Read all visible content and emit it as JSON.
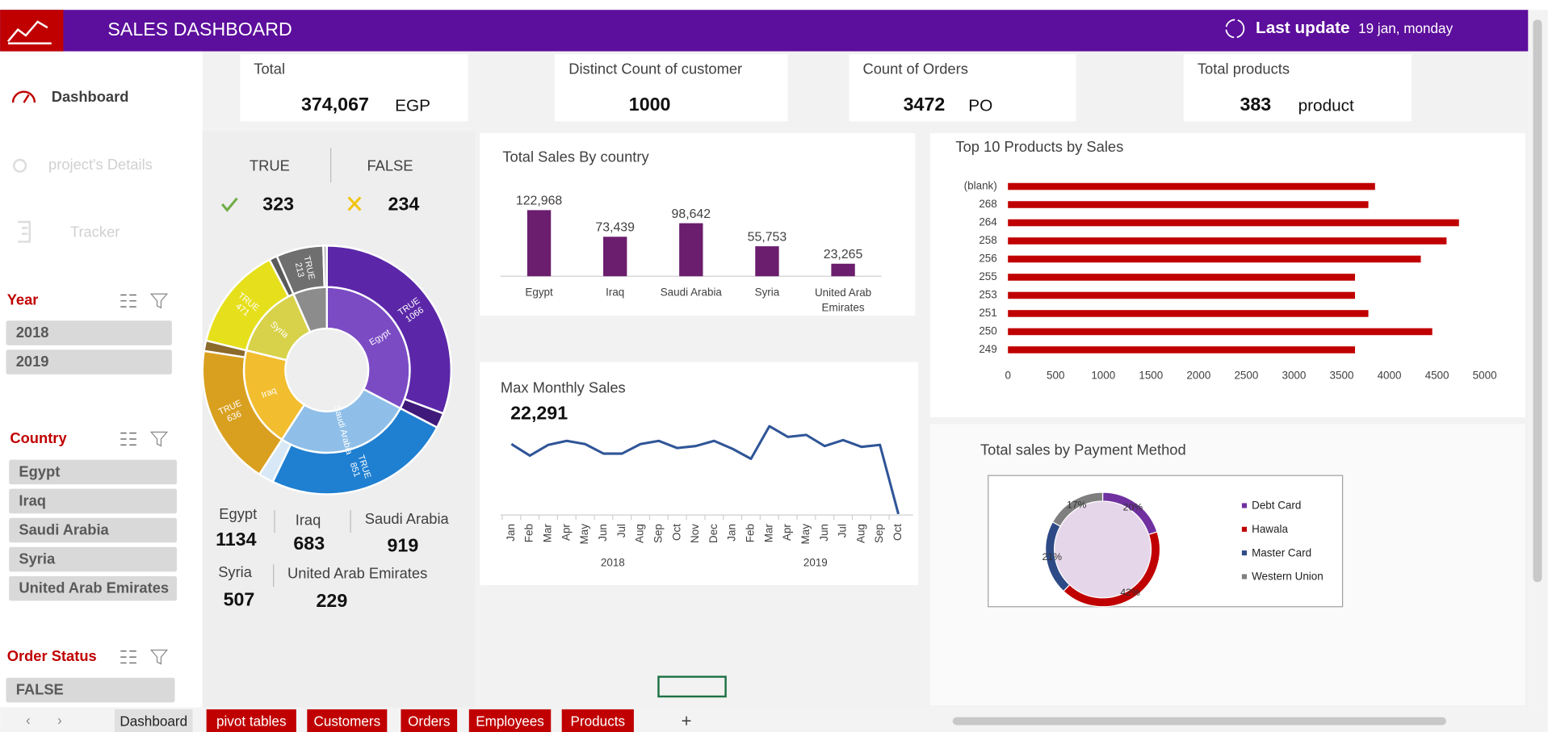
{
  "header": {
    "title": "SALES DASHBOARD",
    "update_label": "Last update",
    "update_value": "19 jan, monday"
  },
  "nav": [
    "Dashboard",
    "project's Details",
    "Tracker"
  ],
  "filters": [
    {
      "title": "Year",
      "items": [
        "2018",
        "2019"
      ]
    },
    {
      "title": "Country",
      "items": [
        "Egypt",
        "Iraq",
        "Saudi Arabia",
        "Syria",
        "United Arab Emirates"
      ]
    },
    {
      "title": "Order Status",
      "items": [
        "FALSE"
      ]
    }
  ],
  "kpis": [
    {
      "label": "Total",
      "value": "374,067",
      "unit": "EGP"
    },
    {
      "label": "Distinct Count of customer",
      "value": "1000"
    },
    {
      "label": "Count of Orders",
      "value": "3472",
      "unit": "PO"
    },
    {
      "label": "Total products",
      "value": "383",
      "unit": "product"
    }
  ],
  "status_summary": [
    {
      "label": "TRUE",
      "value": 323
    },
    {
      "label": "FALSE",
      "value": 234
    }
  ],
  "country_counts": [
    {
      "name": "Egypt",
      "value": 1134
    },
    {
      "name": "Iraq",
      "value": 683
    },
    {
      "name": "Saudi Arabia",
      "value": 919
    },
    {
      "name": "Syria",
      "value": 507
    },
    {
      "name": "United Arab Emirates",
      "value": 229
    }
  ],
  "chart_data": [
    {
      "type": "sunburst",
      "categories": [
        "Egypt",
        "Saudi Arabia",
        "Iraq",
        "Syria",
        null
      ],
      "inner_colors": [
        "#7b4bc4",
        "#8fbfe8",
        "#f2bd2e",
        "#d8d24a",
        "#8c8c8c"
      ],
      "series": [
        {
          "name": "TRUE",
          "values": [
            1066,
            851,
            636,
            471,
            213
          ],
          "colors": [
            "#5b27a8",
            "#1f7fd1",
            "#d9a020",
            "#e6df1c",
            "#6f6f6f"
          ]
        },
        {
          "name": "FALSE",
          "values": [
            68,
            68,
            47,
            36,
            16
          ],
          "colors": [
            "#3f1a7a",
            "#d8e8f6",
            "#8b6a2c",
            "#5a5a5a",
            "#b5b5b5"
          ]
        }
      ]
    },
    {
      "type": "bar",
      "title": "Total Sales By country",
      "categories": [
        "Egypt",
        "Iraq",
        "Saudi Arabia",
        "Syria",
        "United Arab Emirates"
      ],
      "values": [
        122968,
        73439,
        98642,
        55753,
        23265
      ],
      "value_labels": [
        "122,968",
        "73,439",
        "98,642",
        "55,753",
        "23,265"
      ],
      "color": "#6b1d6e"
    },
    {
      "type": "bar",
      "horizontal": true,
      "title": "Top 10 Products by Sales",
      "categories": [
        "(blank)",
        "268",
        "264",
        "258",
        "256",
        "255",
        "253",
        "251",
        "250",
        "249"
      ],
      "values": [
        3850,
        3780,
        4730,
        4600,
        4330,
        3640,
        3640,
        3780,
        4450,
        3640
      ],
      "xlim": [
        0,
        5000
      ],
      "xticks": [
        0,
        500,
        1000,
        1500,
        2000,
        2500,
        3000,
        3500,
        4000,
        4500,
        5000
      ],
      "color": "#c00000"
    },
    {
      "type": "line",
      "title": "Max Monthly Sales",
      "annotation": "22,291",
      "categories": [
        "Jan",
        "Feb",
        "Mar",
        "Apr",
        "May",
        "Jun",
        "Jul",
        "Aug",
        "Sep",
        "Oct",
        "Nov",
        "Dec",
        "Jan",
        "Feb",
        "Mar",
        "Apr",
        "May",
        "Jun",
        "Jul",
        "Aug",
        "Sep",
        "Oct"
      ],
      "groups": [
        "2018",
        "2019"
      ],
      "values": [
        17800,
        14900,
        17600,
        18600,
        17800,
        15400,
        15400,
        17800,
        18600,
        16800,
        17300,
        18600,
        16600,
        14100,
        22291,
        19600,
        20100,
        17300,
        18800,
        17100,
        17600,
        250
      ],
      "color": "#2f5597"
    },
    {
      "type": "pie",
      "title": "Total sales by Payment Method",
      "categories": [
        "Debt Card",
        "Hawala",
        "Master Card",
        "Western Union"
      ],
      "values": [
        20,
        42,
        21,
        17
      ],
      "value_labels": [
        "20%",
        "42%",
        "21%",
        "17%"
      ],
      "colors": [
        "#7030a0",
        "#c00000",
        "#2e4a86",
        "#7f7f7f"
      ]
    }
  ],
  "tabs": [
    "Dashboard",
    "pivot tables",
    "Customers",
    "Orders",
    "Employees",
    "Products"
  ]
}
